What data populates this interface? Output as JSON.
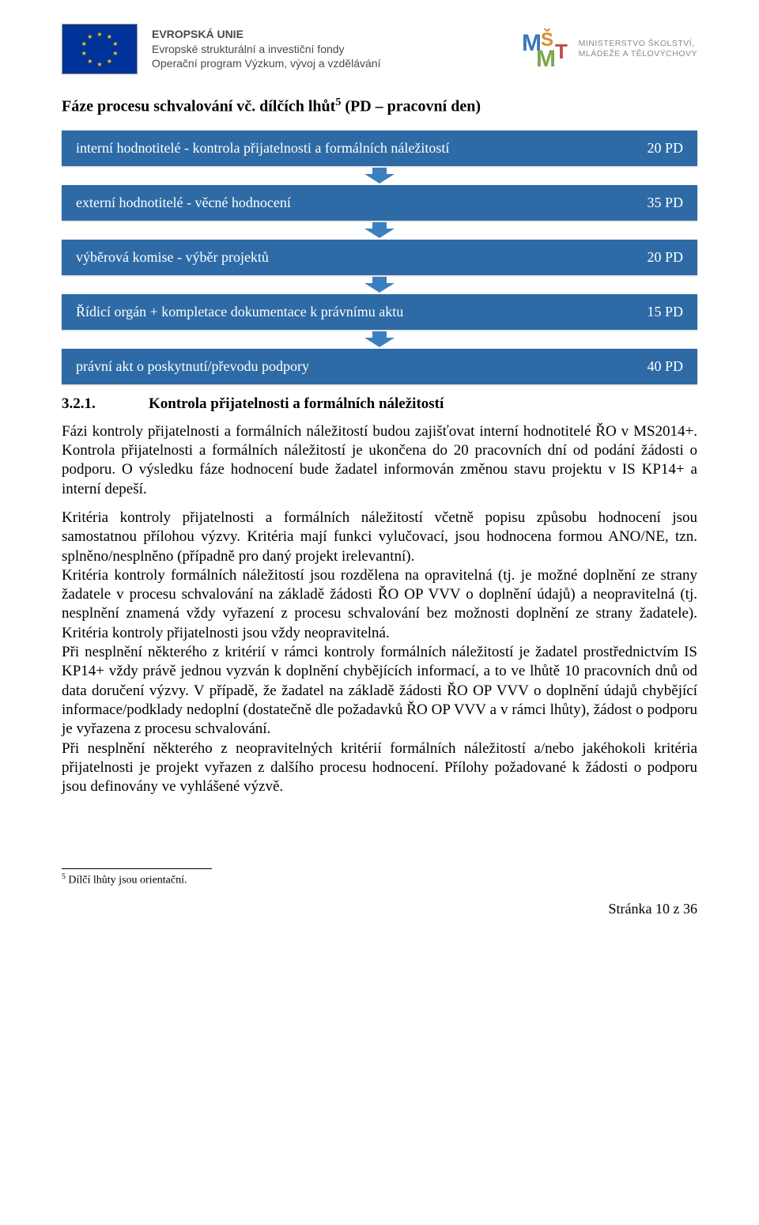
{
  "header": {
    "eu_line1": "EVROPSKÁ UNIE",
    "eu_line2": "Evropské strukturální a investiční fondy",
    "eu_line3": "Operační program Výzkum, vývoj a vzdělávání",
    "msmt_line1": "MINISTERSTVO ŠKOLSTVÍ,",
    "msmt_line2": "MLÁDEŽE A TĚLOVÝCHOVY"
  },
  "title_prefix": "Fáze procesu schvalování vč. dílčích lhůt",
  "title_sup": "5",
  "title_suffix": " (PD – pracovní den)",
  "flow": {
    "box_bg": "#2e6ba6",
    "box_fg": "#ffffff",
    "arrow_fill": "#3b7fbf",
    "items": [
      {
        "label": "interní hodnotitelé - kontrola přijatelnosti a formálních náležitostí",
        "value": "20 PD"
      },
      {
        "label": "externí hodnotitelé - věcné hodnocení",
        "value": "35 PD"
      },
      {
        "label": "výběrová komise - výběr projektů",
        "value": "20 PD"
      },
      {
        "label": "Řídicí orgán + kompletace dokumentace k právnímu aktu",
        "value": "15 PD"
      },
      {
        "label": "právní akt o poskytnutí/převodu podpory",
        "value": "40 PD"
      }
    ]
  },
  "subsection": {
    "number": "3.2.1.",
    "title": "Kontrola přijatelnosti a formálních náležitostí"
  },
  "paragraphs": {
    "p1": "Fázi kontroly přijatelnosti a formálních náležitostí budou zajišťovat interní hodnotitelé ŘO v MS2014+. Kontrola přijatelnosti a formálních náležitostí je ukončena do 20 pracovních dní od podání žádosti o podporu. O výsledku fáze hodnocení bude žadatel informován změnou stavu projektu v IS KP14+ a interní depeší.",
    "p2": "Kritéria kontroly přijatelnosti a formálních náležitostí včetně popisu způsobu hodnocení jsou samostatnou přílohou výzvy. Kritéria mají funkci vylučovací, jsou hodnocena formou ANO/NE, tzn. splněno/nesplněno (případně pro daný projekt irelevantní).",
    "p3": "Kritéria kontroly formálních náležitostí jsou rozdělena na opravitelná (tj. je možné doplnění ze strany žadatele v procesu schvalování na základě žádosti ŘO OP VVV o doplnění údajů) a neopravitelná (tj. nesplnění znamená vždy vyřazení z procesu schvalování bez možnosti doplnění ze strany žadatele). Kritéria kontroly přijatelnosti jsou vždy neopravitelná.",
    "p4": "Při nesplnění některého z kritérií v rámci kontroly formálních náležitostí je žadatel prostřednictvím IS KP14+ vždy právě jednou vyzván k doplnění chybějících informací, a to ve lhůtě 10 pracovních dnů od data doručení výzvy. V případě, že žadatel na základě žádosti ŘO OP VVV o doplnění údajů chybějící informace/podklady nedoplní (dostatečně dle požadavků ŘO OP VVV a v rámci lhůty), žádost o podporu je vyřazena z procesu schvalování.",
    "p5": "Při nesplnění některého z neopravitelných kritérií formálních náležitostí a/nebo jakéhokoli kritéria přijatelnosti je projekt vyřazen z dalšího procesu hodnocení. Přílohy požadované k žádosti o podporu jsou definovány ve vyhlášené výzvě."
  },
  "footnote": {
    "marker": "5",
    "text": " Dílčí lhůty jsou orientační."
  },
  "page_number": "Stránka 10 z 36"
}
